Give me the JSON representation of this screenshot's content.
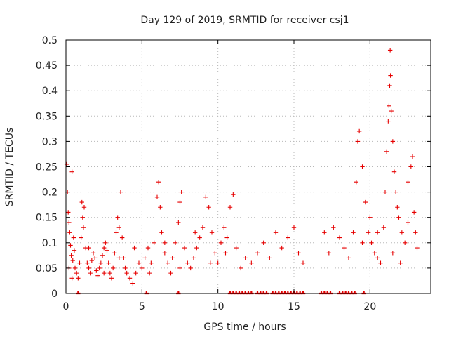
{
  "chart_data": {
    "type": "scatter",
    "title": "Day 129 of 2019, SRMTID for receiver csj1",
    "xlabel": "GPS time / hours",
    "ylabel": "SRMTID / TECUs",
    "xlim": [
      0,
      24
    ],
    "ylim": [
      0,
      0.5
    ],
    "x_ticks": [
      0,
      5,
      10,
      15,
      20
    ],
    "x_tick_labels": [
      "0",
      "5",
      "10",
      "15",
      "20"
    ],
    "y_ticks": [
      0,
      0.05,
      0.1,
      0.15,
      0.2,
      0.25,
      0.3,
      0.35,
      0.4,
      0.45,
      0.5
    ],
    "y_tick_labels": [
      "0",
      "0.05",
      "0.1",
      "0.15",
      "0.2",
      "0.25",
      "0.3",
      "0.35",
      "0.4",
      "0.45",
      "0.5"
    ],
    "grid": true,
    "marker": "+",
    "marker_color": "#e60000",
    "series": [
      {
        "name": "SRMTID",
        "points": [
          [
            0.05,
            0.255
          ],
          [
            0.1,
            0.2
          ],
          [
            0.15,
            0.16
          ],
          [
            0.2,
            0.14
          ],
          [
            0.25,
            0.12
          ],
          [
            0.3,
            0.095
          ],
          [
            0.35,
            0.075
          ],
          [
            0.4,
            0.24
          ],
          [
            0.45,
            0.065
          ],
          [
            0.5,
            0.11
          ],
          [
            0.55,
            0.085
          ],
          [
            0.6,
            0.05
          ],
          [
            0.7,
            0.04
          ],
          [
            0.8,
            0.03
          ],
          [
            0.9,
            0.06
          ],
          [
            1.0,
            0.11
          ],
          [
            1.05,
            0.18
          ],
          [
            1.1,
            0.15
          ],
          [
            1.15,
            0.13
          ],
          [
            1.2,
            0.17
          ],
          [
            1.3,
            0.09
          ],
          [
            1.4,
            0.06
          ],
          [
            1.5,
            0.05
          ],
          [
            1.6,
            0.04
          ],
          [
            1.7,
            0.065
          ],
          [
            1.8,
            0.08
          ],
          [
            1.9,
            0.07
          ],
          [
            2.0,
            0.045
          ],
          [
            2.1,
            0.035
          ],
          [
            2.2,
            0.05
          ],
          [
            2.3,
            0.06
          ],
          [
            2.4,
            0.075
          ],
          [
            2.5,
            0.09
          ],
          [
            2.6,
            0.1
          ],
          [
            2.7,
            0.085
          ],
          [
            2.8,
            0.06
          ],
          [
            2.9,
            0.04
          ],
          [
            3.0,
            0.03
          ],
          [
            3.1,
            0.05
          ],
          [
            3.2,
            0.08
          ],
          [
            3.3,
            0.12
          ],
          [
            3.4,
            0.15
          ],
          [
            3.5,
            0.13
          ],
          [
            3.6,
            0.2
          ],
          [
            3.7,
            0.11
          ],
          [
            3.8,
            0.07
          ],
          [
            3.9,
            0.05
          ],
          [
            4.0,
            0.04
          ],
          [
            4.2,
            0.03
          ],
          [
            4.4,
            0.02
          ],
          [
            4.6,
            0.04
          ],
          [
            4.8,
            0.06
          ],
          [
            5.0,
            0.05
          ],
          [
            5.2,
            0.07
          ],
          [
            5.4,
            0.09
          ],
          [
            5.6,
            0.06
          ],
          [
            5.8,
            0.1
          ],
          [
            6.0,
            0.19
          ],
          [
            6.1,
            0.22
          ],
          [
            6.2,
            0.17
          ],
          [
            6.3,
            0.12
          ],
          [
            6.5,
            0.08
          ],
          [
            6.7,
            0.06
          ],
          [
            6.9,
            0.04
          ],
          [
            7.0,
            0.07
          ],
          [
            7.2,
            0.1
          ],
          [
            7.4,
            0.14
          ],
          [
            7.5,
            0.18
          ],
          [
            7.6,
            0.2
          ],
          [
            7.8,
            0.09
          ],
          [
            8.0,
            0.06
          ],
          [
            8.2,
            0.05
          ],
          [
            8.4,
            0.07
          ],
          [
            8.6,
            0.09
          ],
          [
            8.8,
            0.11
          ],
          [
            9.0,
            0.13
          ],
          [
            9.2,
            0.19
          ],
          [
            9.4,
            0.17
          ],
          [
            9.6,
            0.12
          ],
          [
            9.8,
            0.08
          ],
          [
            10.0,
            0.06
          ],
          [
            10.2,
            0.1
          ],
          [
            10.4,
            0.13
          ],
          [
            10.6,
            0.11
          ],
          [
            10.8,
            0.17
          ],
          [
            11.0,
            0.195
          ],
          [
            11.2,
            0.09
          ],
          [
            11.5,
            0.05
          ],
          [
            11.8,
            0.07
          ],
          [
            12.2,
            0.06
          ],
          [
            12.6,
            0.08
          ],
          [
            13.0,
            0.1
          ],
          [
            13.4,
            0.07
          ],
          [
            13.8,
            0.12
          ],
          [
            14.2,
            0.09
          ],
          [
            14.6,
            0.11
          ],
          [
            15.0,
            0.13
          ],
          [
            15.3,
            0.08
          ],
          [
            15.6,
            0.06
          ],
          [
            17.0,
            0.12
          ],
          [
            17.3,
            0.08
          ],
          [
            17.6,
            0.13
          ],
          [
            18.0,
            0.11
          ],
          [
            18.3,
            0.09
          ],
          [
            18.6,
            0.07
          ],
          [
            18.9,
            0.12
          ],
          [
            19.1,
            0.22
          ],
          [
            19.2,
            0.3
          ],
          [
            19.3,
            0.32
          ],
          [
            19.5,
            0.25
          ],
          [
            19.7,
            0.18
          ],
          [
            19.9,
            0.12
          ],
          [
            20.1,
            0.1
          ],
          [
            20.3,
            0.08
          ],
          [
            20.5,
            0.07
          ],
          [
            20.7,
            0.06
          ],
          [
            20.9,
            0.13
          ],
          [
            21.0,
            0.2
          ],
          [
            21.1,
            0.28
          ],
          [
            21.2,
            0.34
          ],
          [
            21.25,
            0.37
          ],
          [
            21.3,
            0.41
          ],
          [
            21.33,
            0.48
          ],
          [
            21.35,
            0.43
          ],
          [
            21.4,
            0.36
          ],
          [
            21.5,
            0.3
          ],
          [
            21.6,
            0.24
          ],
          [
            21.7,
            0.2
          ],
          [
            21.8,
            0.17
          ],
          [
            21.9,
            0.15
          ],
          [
            22.1,
            0.12
          ],
          [
            22.3,
            0.1
          ],
          [
            22.5,
            0.22
          ],
          [
            22.7,
            0.25
          ],
          [
            22.8,
            0.27
          ],
          [
            22.9,
            0.16
          ],
          [
            23.0,
            0.12
          ],
          [
            23.1,
            0.09
          ],
          [
            0.2,
            0.05
          ],
          [
            0.4,
            0.03
          ],
          [
            1.5,
            0.09
          ],
          [
            2.5,
            0.04
          ],
          [
            3.5,
            0.07
          ],
          [
            4.5,
            0.09
          ],
          [
            5.5,
            0.04
          ],
          [
            6.5,
            0.1
          ],
          [
            7.5,
            0.05
          ],
          [
            8.5,
            0.12
          ],
          [
            9.5,
            0.06
          ],
          [
            10.5,
            0.08
          ],
          [
            19.5,
            0.1
          ],
          [
            20.0,
            0.15
          ],
          [
            20.5,
            0.12
          ],
          [
            21.5,
            0.08
          ],
          [
            22.0,
            0.06
          ],
          [
            22.5,
            0.14
          ]
        ]
      }
    ],
    "zero_points_x": [
      0.8,
      5.3,
      7.4,
      10.8,
      11.0,
      11.2,
      11.4,
      11.6,
      11.8,
      12.0,
      12.2,
      12.6,
      12.8,
      13.0,
      13.2,
      13.6,
      13.8,
      14.0,
      14.2,
      14.4,
      14.6,
      14.8,
      15.0,
      15.2,
      15.4,
      15.6,
      16.8,
      17.0,
      17.2,
      17.4,
      18.0,
      18.2,
      18.4,
      18.6,
      18.8,
      19.0,
      19.6
    ]
  }
}
